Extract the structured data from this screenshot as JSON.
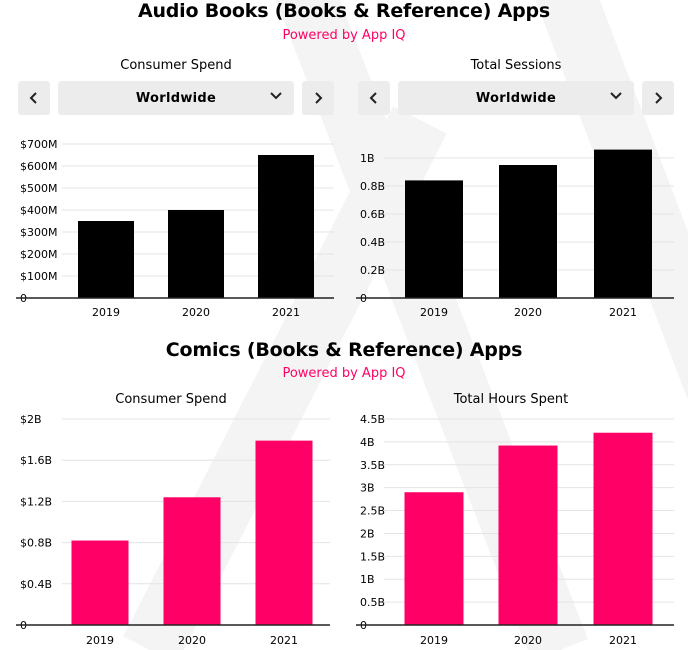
{
  "colors": {
    "brand": "#ff0066",
    "audio_bar": "#000000",
    "comics_bar": "#ff0066",
    "control_bg": "#ececec"
  },
  "sections": [
    {
      "title": "Audio Books (Books & Reference) Apps",
      "subtitle": "Powered by App IQ",
      "region": "Worldwide"
    },
    {
      "title": "Comics (Books & Reference) Apps",
      "subtitle": "Powered by App IQ"
    }
  ],
  "icons": {
    "prev": "chevron-left-icon",
    "next": "chevron-right-icon",
    "dropdown": "chevron-down-icon"
  },
  "chart_data": [
    {
      "id": "audio-spend",
      "type": "bar",
      "title": "Consumer Spend",
      "categories": [
        "2019",
        "2020",
        "2021"
      ],
      "values": [
        350,
        400,
        650
      ],
      "unit": "USD millions",
      "ylim": [
        0,
        700
      ],
      "yticks": [
        0,
        100,
        200,
        300,
        400,
        500,
        600,
        700
      ],
      "ytick_labels": [
        "0",
        "$100M",
        "$200M",
        "$300M",
        "$400M",
        "$500M",
        "$600M",
        "$700M"
      ],
      "color": "#000000",
      "grid": true
    },
    {
      "id": "audio-sessions",
      "type": "bar",
      "title": "Total Sessions",
      "categories": [
        "2019",
        "2020",
        "2021"
      ],
      "values": [
        0.84,
        0.95,
        1.06
      ],
      "unit": "billions",
      "ylim": [
        0,
        1.1
      ],
      "yticks": [
        0,
        0.2,
        0.4,
        0.6,
        0.8,
        1.0
      ],
      "ytick_labels": [
        "0",
        "0.2B",
        "0.4B",
        "0.6B",
        "0.8B",
        "1B"
      ],
      "color": "#000000",
      "grid": true
    },
    {
      "id": "comics-spend",
      "type": "bar",
      "title": "Consumer Spend",
      "categories": [
        "2019",
        "2020",
        "2021"
      ],
      "values": [
        0.82,
        1.24,
        1.79
      ],
      "unit": "USD billions",
      "ylim": [
        0,
        2.0
      ],
      "yticks": [
        0,
        0.4,
        0.8,
        1.2,
        1.6,
        2.0
      ],
      "ytick_labels": [
        "0",
        "$0.4B",
        "$0.8B",
        "$1.2B",
        "$1.6B",
        "$2B"
      ],
      "color": "#ff0066",
      "grid": true
    },
    {
      "id": "comics-hours",
      "type": "bar",
      "title": "Total Hours Spent",
      "categories": [
        "2019",
        "2020",
        "2021"
      ],
      "values": [
        2.9,
        3.92,
        4.2
      ],
      "unit": "billions",
      "ylim": [
        0,
        4.5
      ],
      "yticks": [
        0,
        0.5,
        1,
        1.5,
        2,
        2.5,
        3,
        3.5,
        4,
        4.5
      ],
      "ytick_labels": [
        "0",
        "0.5B",
        "1B",
        "1.5B",
        "2B",
        "2.5B",
        "3B",
        "3.5B",
        "4B",
        "4.5B"
      ],
      "color": "#ff0066",
      "grid": true
    }
  ]
}
